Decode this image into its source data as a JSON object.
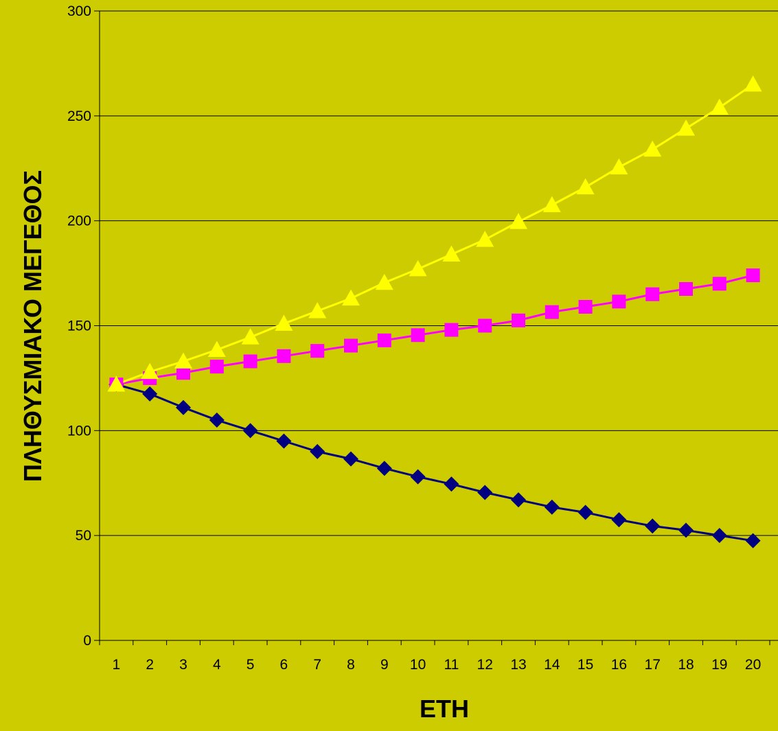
{
  "chart_data": {
    "type": "line",
    "title": "",
    "xlabel": "ΕΤΗ",
    "ylabel": "ΠΛΗΘΥΣΜΙΑΚΟ ΜΕΓΕΘΟΣ",
    "categories": [
      "1",
      "2",
      "3",
      "4",
      "5",
      "6",
      "7",
      "8",
      "9",
      "10",
      "11",
      "12",
      "13",
      "14",
      "15",
      "16",
      "17",
      "18",
      "19",
      "20"
    ],
    "yticks": [
      "0",
      "50",
      "100",
      "150",
      "200",
      "250",
      "300"
    ],
    "ylim": [
      0,
      300
    ],
    "grid": true,
    "legend": "none",
    "background_color": "#CCCC00",
    "series": [
      {
        "marker": "diamond",
        "color": "#000080",
        "values": [
          122,
          117.5,
          111,
          105,
          100,
          95,
          90,
          86.5,
          82,
          78,
          74.5,
          70.5,
          67,
          63.5,
          61,
          57.5,
          54.5,
          52.5,
          50,
          47.5
        ]
      },
      {
        "marker": "square",
        "color": "#FF00FF",
        "values": [
          122,
          125,
          127.5,
          130.5,
          133,
          135.5,
          138,
          140.5,
          143,
          145.5,
          148,
          150,
          152.5,
          156.5,
          159,
          161.5,
          165,
          167.5,
          170,
          174
        ]
      },
      {
        "marker": "triangle",
        "color": "#FFFF00",
        "values": [
          122,
          128,
          133,
          138.5,
          144.5,
          151,
          157,
          163,
          170.5,
          177,
          184,
          191,
          199.5,
          207.5,
          216,
          225.5,
          234,
          244,
          254,
          265
        ]
      }
    ]
  }
}
